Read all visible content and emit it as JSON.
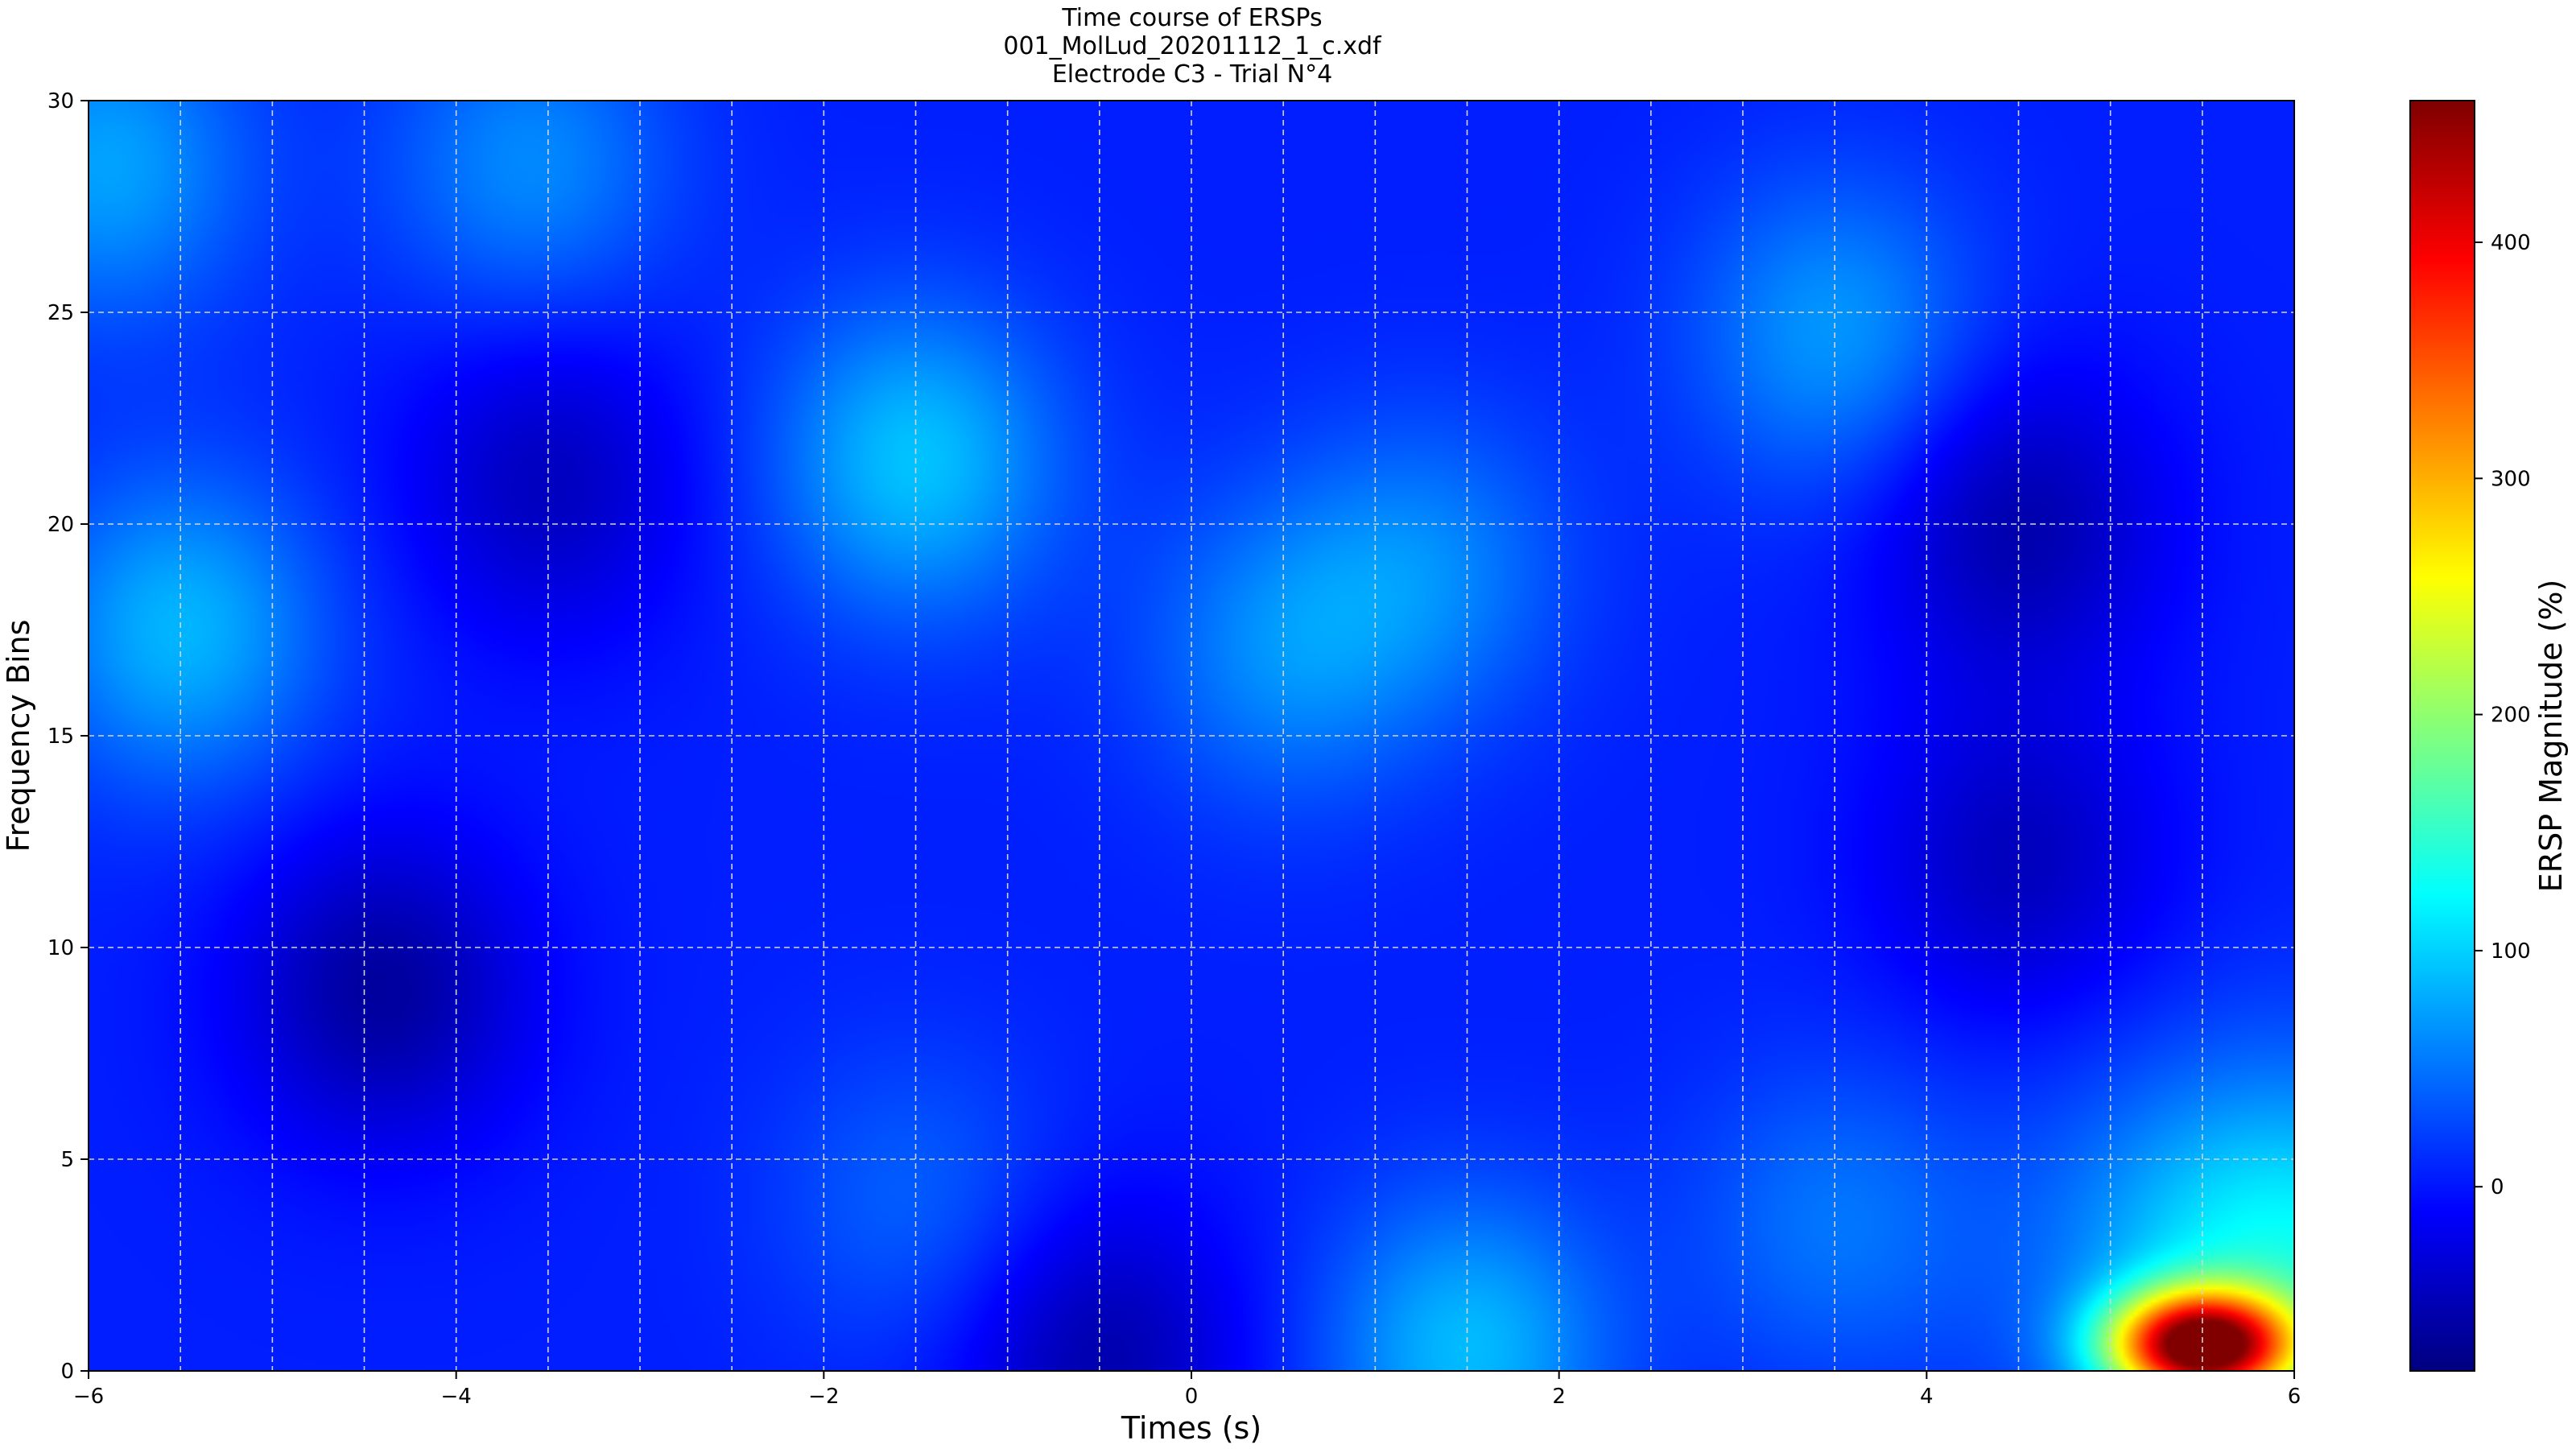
{
  "chart_data": {
    "type": "heatmap",
    "title": [
      "Time course of ERSPs",
      "001_MolLud_20201112_1_c.xdf",
      "Electrode C3 - Trial N°4"
    ],
    "xlabel": "Times (s)",
    "ylabel": "Frequency Bins",
    "xlim": [
      -6,
      6
    ],
    "ylim": [
      0,
      30
    ],
    "x_ticks": [
      -6,
      -4,
      -2,
      0,
      2,
      4,
      6
    ],
    "y_ticks": [
      0,
      5,
      10,
      15,
      20,
      25,
      30
    ],
    "grid": true,
    "colormap": "jet",
    "colorbar": {
      "label": "ERSP Magnitude (%)",
      "range": [
        -78,
        460
      ],
      "ticks": [
        0,
        100,
        200,
        300,
        400
      ]
    },
    "baseline_value": 5,
    "features": [
      {
        "t": -5.9,
        "f": 28.5,
        "value": 75
      },
      {
        "t": -5.5,
        "f": 17.5,
        "value": 85
      },
      {
        "t": -3.6,
        "f": 28.5,
        "value": 62
      },
      {
        "t": -1.5,
        "f": 21.5,
        "value": 92
      },
      {
        "t": 0.5,
        "f": 17.0,
        "value": 60
      },
      {
        "t": 1.3,
        "f": 19.0,
        "value": 55
      },
      {
        "t": 3.5,
        "f": 24.5,
        "value": 70
      },
      {
        "t": 3.5,
        "f": 3.5,
        "value": 50
      },
      {
        "t": -1.5,
        "f": 4.0,
        "value": 40
      },
      {
        "t": 1.5,
        "f": 0.5,
        "value": 88
      },
      {
        "t": 5.9,
        "f": 2.5,
        "value": 130
      },
      {
        "t": 5.5,
        "f": 0.6,
        "value": 440
      },
      {
        "t": -4.4,
        "f": 9.0,
        "value": -62
      },
      {
        "t": -3.5,
        "f": 21.0,
        "value": -45
      },
      {
        "t": 4.5,
        "f": 20.0,
        "value": -55
      },
      {
        "t": 4.5,
        "f": 12.0,
        "value": -45
      },
      {
        "t": -0.5,
        "f": 0.3,
        "value": -55
      }
    ]
  }
}
